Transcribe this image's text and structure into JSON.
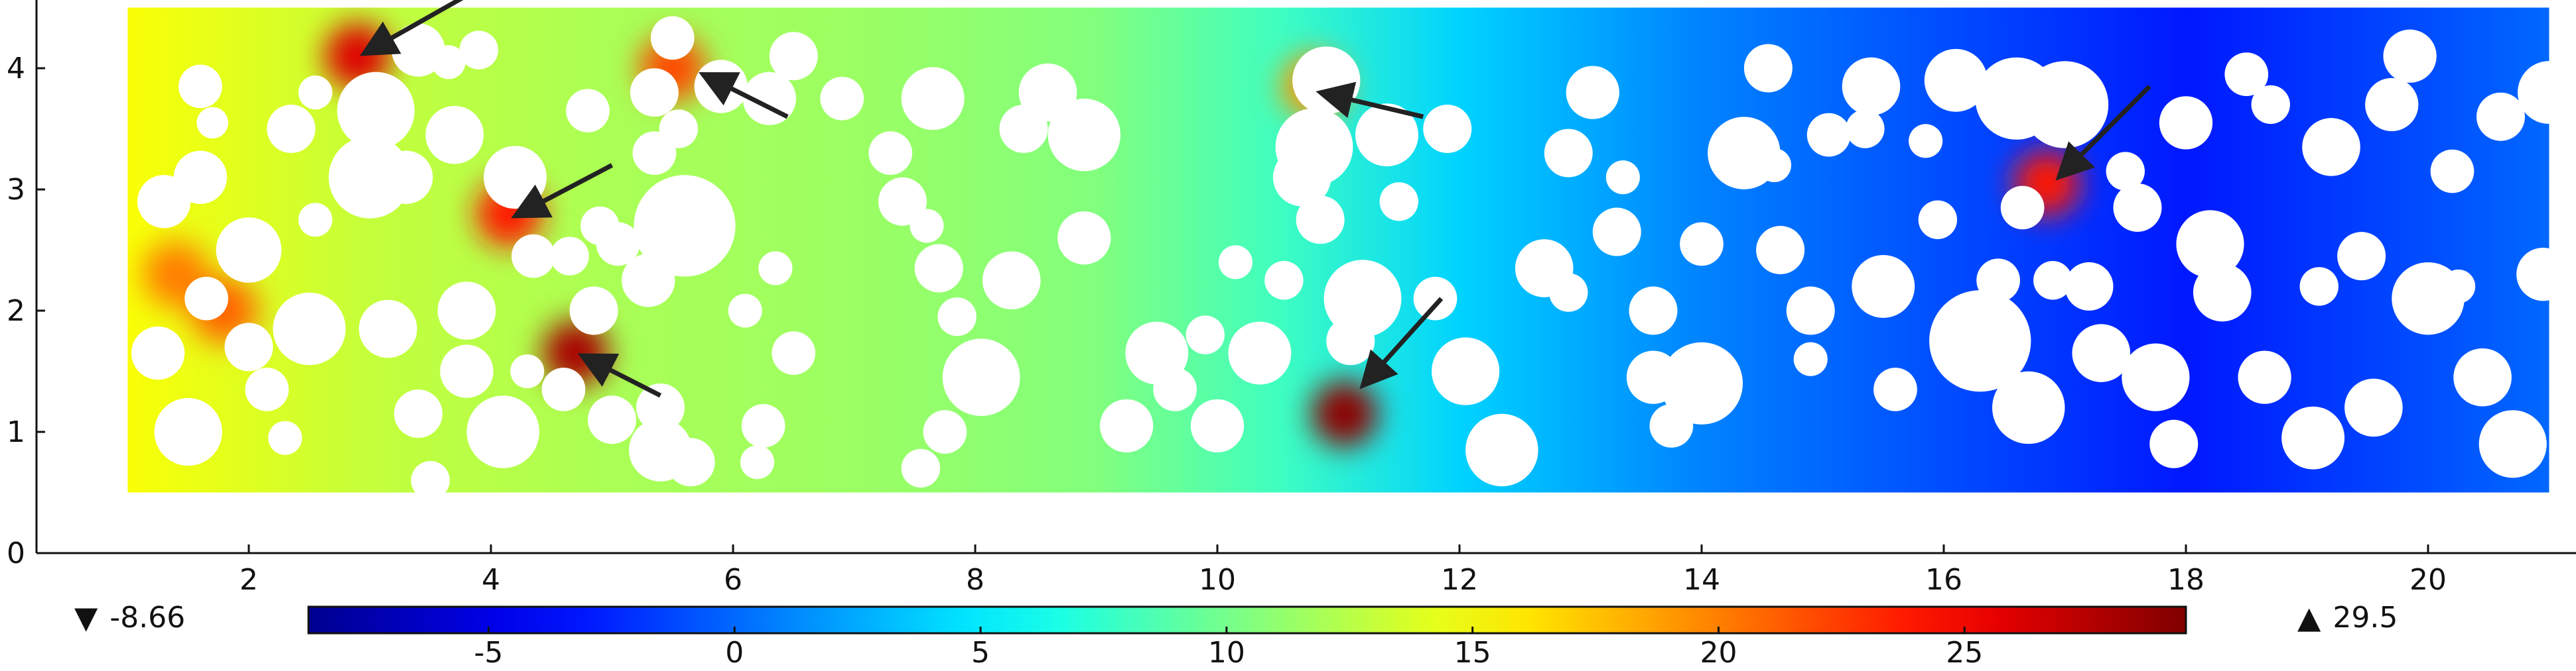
{
  "chart_data": {
    "type": "heatmap",
    "title": "",
    "xlabel": "",
    "ylabel": "",
    "xlim": [
      0,
      21.3
    ],
    "ylim": [
      0,
      4.5
    ],
    "xticks": [
      2,
      4,
      6,
      8,
      10,
      12,
      14,
      16,
      18,
      20
    ],
    "yticks": [
      0,
      1,
      2,
      3,
      4
    ],
    "domain": {
      "x": [
        1.0,
        21.0
      ],
      "y": [
        0.5,
        4.5
      ]
    },
    "colorbar": {
      "min": -8.66,
      "max": 29.5,
      "min_label": "-8.66",
      "max_label": "29.5",
      "ticks": [
        -5,
        0,
        5,
        10,
        15,
        20,
        25
      ],
      "colormap": "jet",
      "colors": [
        "#00008f",
        "#0000ff",
        "#00ffff",
        "#ffff00",
        "#ff0000",
        "#800000"
      ]
    },
    "field_profile": [
      {
        "x": 1.0,
        "value": 15
      },
      {
        "x": 3.0,
        "value": 13
      },
      {
        "x": 5.0,
        "value": 12
      },
      {
        "x": 7.0,
        "value": 11.5
      },
      {
        "x": 9.0,
        "value": 10.5
      },
      {
        "x": 10.5,
        "value": 8
      },
      {
        "x": 12.0,
        "value": 4
      },
      {
        "x": 14.0,
        "value": 1
      },
      {
        "x": 16.0,
        "value": -1
      },
      {
        "x": 18.0,
        "value": -3
      },
      {
        "x": 21.0,
        "value": 0
      }
    ],
    "hotspots": [
      {
        "x": 2.9,
        "y": 4.1,
        "value": 26
      },
      {
        "x": 5.5,
        "y": 4.0,
        "value": 22
      },
      {
        "x": 4.15,
        "y": 2.8,
        "value": 24
      },
      {
        "x": 4.7,
        "y": 1.65,
        "value": 28
      },
      {
        "x": 10.8,
        "y": 3.85,
        "value": 19
      },
      {
        "x": 11.05,
        "y": 1.15,
        "value": 29
      },
      {
        "x": 16.85,
        "y": 3.05,
        "value": 24
      },
      {
        "x": 1.4,
        "y": 2.3,
        "value": 20
      },
      {
        "x": 1.8,
        "y": 2.0,
        "value": 21
      }
    ],
    "arrows": [
      {
        "from": [
          3.8,
          4.6
        ],
        "to": [
          2.95,
          4.12
        ]
      },
      {
        "from": [
          6.45,
          3.6
        ],
        "to": [
          5.75,
          3.95
        ]
      },
      {
        "from": [
          5.0,
          3.2
        ],
        "to": [
          4.2,
          2.78
        ]
      },
      {
        "from": [
          5.4,
          1.3
        ],
        "to": [
          4.75,
          1.63
        ]
      },
      {
        "from": [
          11.7,
          3.6
        ],
        "to": [
          10.85,
          3.8
        ]
      },
      {
        "from": [
          11.85,
          2.1
        ],
        "to": [
          11.2,
          1.38
        ]
      },
      {
        "from": [
          17.7,
          3.85
        ],
        "to": [
          16.95,
          3.1
        ]
      }
    ],
    "pores": [
      [
        1.5,
        1.0,
        0.28
      ],
      [
        2.15,
        1.35,
        0.18
      ],
      [
        2.3,
        0.95,
        0.14
      ],
      [
        2.0,
        1.7,
        0.2
      ],
      [
        1.25,
        1.65,
        0.22
      ],
      [
        1.65,
        2.1,
        0.18
      ],
      [
        1.3,
        2.9,
        0.22
      ],
      [
        2.0,
        2.5,
        0.27
      ],
      [
        2.5,
        1.85,
        0.3
      ],
      [
        2.55,
        2.75,
        0.14
      ],
      [
        1.6,
        3.1,
        0.22
      ],
      [
        1.6,
        3.85,
        0.18
      ],
      [
        1.7,
        3.55,
        0.13
      ],
      [
        2.35,
        3.5,
        0.2
      ],
      [
        2.55,
        3.8,
        0.14
      ],
      [
        3.0,
        3.1,
        0.34
      ],
      [
        3.3,
        3.1,
        0.22
      ],
      [
        3.05,
        3.65,
        0.32
      ],
      [
        3.4,
        4.15,
        0.22
      ],
      [
        3.65,
        4.05,
        0.14
      ],
      [
        3.7,
        3.45,
        0.24
      ],
      [
        3.9,
        4.15,
        0.16
      ],
      [
        4.2,
        3.1,
        0.26
      ],
      [
        4.35,
        2.45,
        0.18
      ],
      [
        4.65,
        2.45,
        0.16
      ],
      [
        4.9,
        2.7,
        0.16
      ],
      [
        3.15,
        1.85,
        0.24
      ],
      [
        3.8,
        2.0,
        0.24
      ],
      [
        3.4,
        1.15,
        0.2
      ],
      [
        3.5,
        0.6,
        0.16
      ],
      [
        3.8,
        1.5,
        0.22
      ],
      [
        4.3,
        1.5,
        0.14
      ],
      [
        4.1,
        1.0,
        0.3
      ],
      [
        4.6,
        1.35,
        0.18
      ],
      [
        5.0,
        1.1,
        0.2
      ],
      [
        4.85,
        2.0,
        0.2
      ],
      [
        5.3,
        2.25,
        0.22
      ],
      [
        5.05,
        2.55,
        0.18
      ],
      [
        4.8,
        3.65,
        0.18
      ],
      [
        5.35,
        3.3,
        0.18
      ],
      [
        5.35,
        3.8,
        0.2
      ],
      [
        5.55,
        3.5,
        0.16
      ],
      [
        5.6,
        2.7,
        0.42
      ],
      [
        5.4,
        1.2,
        0.2
      ],
      [
        5.4,
        0.85,
        0.26
      ],
      [
        5.65,
        0.75,
        0.2
      ],
      [
        5.9,
        3.85,
        0.22
      ],
      [
        5.5,
        4.25,
        0.18
      ],
      [
        6.3,
        3.75,
        0.22
      ],
      [
        6.5,
        4.1,
        0.2
      ],
      [
        6.35,
        2.35,
        0.14
      ],
      [
        6.5,
        1.65,
        0.18
      ],
      [
        6.25,
        1.05,
        0.18
      ],
      [
        6.2,
        0.75,
        0.14
      ],
      [
        6.1,
        2.0,
        0.14
      ],
      [
        6.9,
        3.75,
        0.18
      ],
      [
        7.3,
        3.3,
        0.18
      ],
      [
        7.4,
        2.9,
        0.2
      ],
      [
        7.65,
        3.75,
        0.26
      ],
      [
        7.6,
        2.7,
        0.14
      ],
      [
        7.7,
        2.35,
        0.2
      ],
      [
        7.85,
        1.95,
        0.16
      ],
      [
        8.05,
        1.45,
        0.32
      ],
      [
        7.75,
        1.0,
        0.18
      ],
      [
        7.55,
        0.7,
        0.16
      ],
      [
        8.3,
        2.25,
        0.24
      ],
      [
        8.4,
        3.5,
        0.2
      ],
      [
        8.6,
        3.8,
        0.24
      ],
      [
        8.9,
        3.45,
        0.3
      ],
      [
        8.9,
        2.6,
        0.22
      ],
      [
        9.25,
        1.05,
        0.22
      ],
      [
        9.5,
        1.65,
        0.26
      ],
      [
        9.65,
        1.35,
        0.18
      ],
      [
        10.0,
        1.05,
        0.22
      ],
      [
        9.9,
        1.8,
        0.16
      ],
      [
        10.15,
        2.4,
        0.14
      ],
      [
        10.35,
        1.65,
        0.26
      ],
      [
        10.55,
        2.25,
        0.16
      ],
      [
        10.7,
        3.1,
        0.24
      ],
      [
        10.8,
        3.35,
        0.32
      ],
      [
        10.9,
        3.9,
        0.28
      ],
      [
        10.85,
        2.75,
        0.2
      ],
      [
        11.2,
        2.1,
        0.32
      ],
      [
        11.1,
        1.75,
        0.2
      ],
      [
        11.4,
        3.45,
        0.26
      ],
      [
        11.5,
        2.9,
        0.16
      ],
      [
        11.9,
        3.5,
        0.2
      ],
      [
        11.8,
        2.1,
        0.18
      ],
      [
        12.05,
        1.5,
        0.28
      ],
      [
        12.35,
        0.85,
        0.3
      ],
      [
        12.7,
        2.35,
        0.24
      ],
      [
        12.9,
        2.15,
        0.16
      ],
      [
        12.9,
        3.3,
        0.2
      ],
      [
        13.1,
        3.8,
        0.22
      ],
      [
        13.35,
        3.1,
        0.14
      ],
      [
        13.3,
        2.65,
        0.2
      ],
      [
        13.6,
        2.0,
        0.2
      ],
      [
        13.6,
        1.45,
        0.22
      ],
      [
        13.75,
        1.05,
        0.18
      ],
      [
        14.0,
        1.4,
        0.34
      ],
      [
        14.0,
        2.55,
        0.18
      ],
      [
        14.35,
        3.3,
        0.3
      ],
      [
        14.55,
        4.0,
        0.2
      ],
      [
        14.6,
        3.2,
        0.14
      ],
      [
        14.65,
        2.5,
        0.2
      ],
      [
        14.9,
        2.0,
        0.2
      ],
      [
        14.9,
        1.6,
        0.14
      ],
      [
        15.05,
        3.45,
        0.18
      ],
      [
        15.35,
        3.5,
        0.16
      ],
      [
        15.4,
        3.85,
        0.24
      ],
      [
        15.6,
        1.35,
        0.18
      ],
      [
        15.5,
        2.2,
        0.26
      ],
      [
        15.95,
        2.75,
        0.16
      ],
      [
        15.85,
        3.4,
        0.14
      ],
      [
        16.1,
        3.9,
        0.26
      ],
      [
        16.3,
        1.75,
        0.42
      ],
      [
        16.45,
        2.25,
        0.18
      ],
      [
        16.6,
        3.75,
        0.34
      ],
      [
        16.65,
        2.85,
        0.18
      ],
      [
        16.7,
        1.2,
        0.3
      ],
      [
        16.9,
        2.25,
        0.16
      ],
      [
        17.0,
        3.7,
        0.36
      ],
      [
        17.2,
        2.2,
        0.2
      ],
      [
        17.3,
        1.65,
        0.24
      ],
      [
        17.5,
        3.15,
        0.16
      ],
      [
        17.6,
        2.85,
        0.2
      ],
      [
        17.75,
        1.45,
        0.28
      ],
      [
        17.9,
        0.9,
        0.2
      ],
      [
        18.0,
        3.55,
        0.22
      ],
      [
        18.2,
        2.55,
        0.28
      ],
      [
        18.3,
        2.15,
        0.24
      ],
      [
        18.5,
        3.95,
        0.18
      ],
      [
        18.65,
        1.45,
        0.22
      ],
      [
        18.7,
        3.7,
        0.16
      ],
      [
        19.05,
        0.95,
        0.26
      ],
      [
        19.1,
        2.2,
        0.16
      ],
      [
        19.2,
        3.35,
        0.24
      ],
      [
        19.45,
        2.45,
        0.2
      ],
      [
        19.55,
        1.2,
        0.24
      ],
      [
        19.7,
        3.7,
        0.22
      ],
      [
        19.85,
        4.1,
        0.22
      ],
      [
        20.0,
        2.1,
        0.3
      ],
      [
        20.2,
        3.15,
        0.18
      ],
      [
        20.25,
        2.2,
        0.14
      ],
      [
        20.45,
        1.45,
        0.24
      ],
      [
        20.6,
        3.6,
        0.2
      ],
      [
        20.7,
        0.9,
        0.28
      ],
      [
        20.95,
        2.3,
        0.22
      ],
      [
        21.0,
        3.8,
        0.26
      ]
    ]
  }
}
